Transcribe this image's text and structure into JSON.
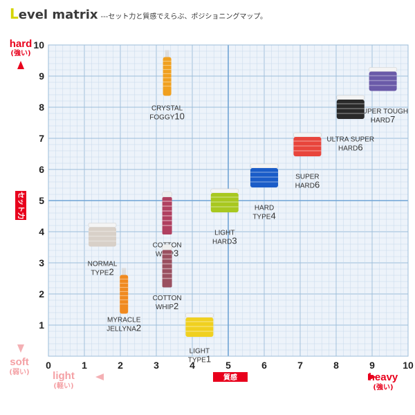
{
  "header": {
    "title_first_letter": "L",
    "title_rest": "evel matrix",
    "subtitle": "---セット力と質感でえらぶ、ポジショニングマップ。"
  },
  "axes": {
    "y_top": {
      "word": "hard",
      "sub": "(強い)"
    },
    "y_bottom": {
      "word": "soft",
      "sub": "(弱い)"
    },
    "y_title": "セット力",
    "x_left": {
      "word": "light",
      "sub": "(軽い)"
    },
    "x_right": {
      "word": "heavy",
      "sub": "(強い)"
    },
    "x_title": "質感"
  },
  "colors": {
    "grid_minor": "#c5d8ea",
    "grid_major": "#9bbcd9",
    "center_line": "#6fa3d4",
    "plot_bg": "#edf3fa",
    "hard_red": "#e8001c",
    "soft_pink": "#f4a0a4",
    "heavy_red": "#e8001c",
    "light_pink": "#f4a0a4"
  },
  "chart_data": {
    "type": "scatter",
    "title": "Level matrix",
    "xlabel": "質感",
    "ylabel": "セット力",
    "xlim": [
      0,
      10
    ],
    "ylim": [
      0,
      10
    ],
    "xticks": [
      "0",
      "1",
      "2",
      "3",
      "4",
      "5",
      "6",
      "7",
      "8",
      "9",
      "10"
    ],
    "yticks": [
      "1",
      "2",
      "3",
      "4",
      "5",
      "6",
      "7",
      "8",
      "9",
      "10"
    ],
    "grid": true,
    "points": [
      {
        "label": [
          "CRYSTAL",
          "FOGGY"
        ],
        "num": "10",
        "x": 3.3,
        "y": 9.1,
        "shape": "bottle",
        "color": "#f0a020",
        "labelY": 7.9
      },
      {
        "label": [
          "SUPER TOUGH",
          "HARD"
        ],
        "num": "7",
        "x": 9.3,
        "y": 8.9,
        "shape": "jar",
        "color": "#6a5aa8",
        "labelY": 7.8
      },
      {
        "label": [
          "ULTRA SUPER",
          "HARD"
        ],
        "num": "6",
        "x": 8.4,
        "y": 8.0,
        "shape": "jar",
        "color": "#2a2a2a",
        "labelY": 6.9
      },
      {
        "label": [
          "SUPER",
          "HARD"
        ],
        "num": "6",
        "x": 7.2,
        "y": 6.8,
        "shape": "jar",
        "color": "#e8453c",
        "labelY": 5.7
      },
      {
        "label": [
          "HARD",
          "TYPE"
        ],
        "num": "4",
        "x": 6.0,
        "y": 5.8,
        "shape": "jar",
        "color": "#1a5cc8",
        "labelY": 4.7
      },
      {
        "label": [
          "LIGHT",
          "HARD"
        ],
        "num": "3",
        "x": 4.9,
        "y": 5.0,
        "shape": "jar",
        "color": "#a8c820",
        "labelY": 3.9
      },
      {
        "label": [
          "COTTON",
          "WHIP"
        ],
        "num": "3",
        "x": 3.3,
        "y": 4.6,
        "shape": "can",
        "color": "#b04060",
        "labelY": 3.5
      },
      {
        "label": [
          "NORMAL",
          "TYPE"
        ],
        "num": "2",
        "x": 1.5,
        "y": 3.9,
        "shape": "jar",
        "color": "#d8d0c8",
        "labelY": 2.9
      },
      {
        "label": [
          "COTTON",
          "WHIP"
        ],
        "num": "2",
        "x": 3.3,
        "y": 2.9,
        "shape": "can",
        "color": "#9a5060",
        "labelY": 1.8
      },
      {
        "label": [
          "MYRACLE",
          "JELLYNA"
        ],
        "num": "2",
        "x": 2.1,
        "y": 2.1,
        "shape": "bottle",
        "color": "#f08a20",
        "labelY": 1.1
      },
      {
        "label": [
          "LIGHT",
          "TYPE"
        ],
        "num": "1",
        "x": 4.2,
        "y": 1.0,
        "shape": "jar",
        "color": "#f0d020",
        "labelY": 0.1
      }
    ]
  }
}
